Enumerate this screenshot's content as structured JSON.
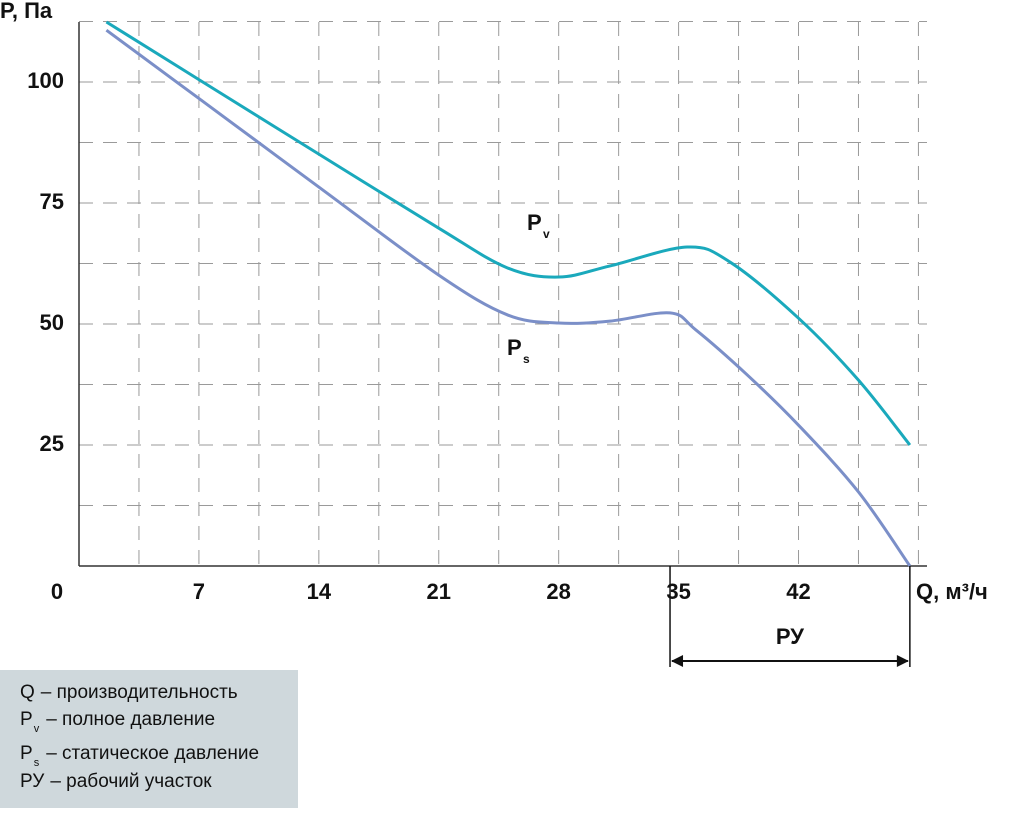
{
  "chart_data": {
    "type": "line",
    "y_label": "P, Па",
    "x_label": "Q, м³/ч",
    "xlim": [
      0,
      49.5
    ],
    "ylim": [
      0,
      112.4
    ],
    "xticks": [
      0,
      7,
      14,
      21,
      28,
      35,
      42
    ],
    "yticks": [
      25,
      50,
      75,
      100
    ],
    "xgrid": [
      3.5,
      7,
      10.5,
      14,
      17.5,
      21,
      24.5,
      28,
      31.5,
      35,
      38.5,
      42,
      45.5,
      49
    ],
    "ygrid": [
      12.5,
      25,
      37.5,
      50,
      62.5,
      75,
      87.5,
      100,
      112.5
    ],
    "grid": true,
    "series": [
      {
        "name": "P",
        "subscript": "v",
        "color": "#1aa9bc",
        "x": [
          1.6,
          7,
          14,
          21,
          25,
          28,
          31,
          35.5,
          38,
          42,
          45.5,
          48.5
        ],
        "values": [
          112.4,
          100.5,
          85.1,
          69.8,
          61.6,
          59.7,
          62,
          65.9,
          62.8,
          51.2,
          38.4,
          25
        ]
      },
      {
        "name": "P",
        "subscript": "s",
        "color": "#7b8fc8",
        "x": [
          1.6,
          7,
          14,
          21,
          25,
          28,
          31,
          34.5,
          36,
          39,
          42,
          45.5,
          48.5
        ],
        "values": [
          110.7,
          96.6,
          78.3,
          60.1,
          51.9,
          50.2,
          50.6,
          52.3,
          48.8,
          39.5,
          29.1,
          15.3,
          0
        ]
      }
    ],
    "work_range": {
      "label": "РУ",
      "x": [
        34.5,
        48.5
      ]
    },
    "legend": [
      {
        "symbol": "Q",
        "text": "– производительность"
      },
      {
        "symbol": "P",
        "subscript": "v",
        "text": "– полное давление"
      },
      {
        "symbol": "P",
        "subscript": "s",
        "text": "– статическое давление"
      },
      {
        "symbol": "РУ",
        "text": "– рабочий участок"
      }
    ]
  }
}
